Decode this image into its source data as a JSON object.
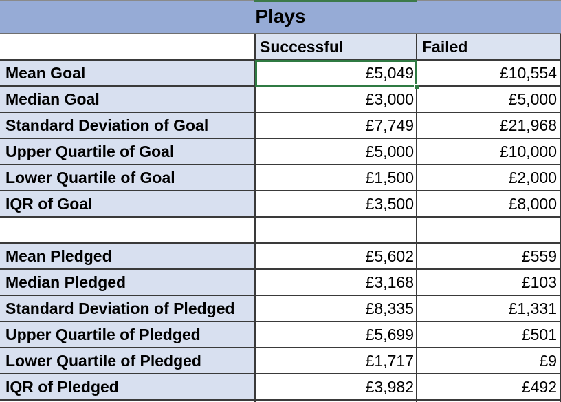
{
  "sheet": {
    "title": "Plays",
    "columns": [
      "Successful",
      "Failed"
    ],
    "selected_cell": "Mean Goal / Successful",
    "rows": [
      {
        "label": "Mean Goal",
        "successful": "£5,049",
        "failed": "£10,554"
      },
      {
        "label": "Median Goal",
        "successful": "£3,000",
        "failed": "£5,000"
      },
      {
        "label": "Standard Deviation of Goal",
        "successful": "£7,749",
        "failed": "£21,968"
      },
      {
        "label": "Upper Quartile of Goal",
        "successful": "£5,000",
        "failed": "£10,000"
      },
      {
        "label": "Lower Quartile of Goal",
        "successful": "£1,500",
        "failed": "£2,000"
      },
      {
        "label": "IQR of Goal",
        "successful": "£3,500",
        "failed": "£8,000"
      },
      {
        "label": "",
        "successful": "",
        "failed": ""
      },
      {
        "label": "Mean Pledged",
        "successful": "£5,602",
        "failed": "£559"
      },
      {
        "label": "Median Pledged",
        "successful": "£3,168",
        "failed": "£103"
      },
      {
        "label": "Standard Deviation of Pledged",
        "successful": "£8,335",
        "failed": "£1,331"
      },
      {
        "label": "Upper Quartile of Pledged",
        "successful": "£5,699",
        "failed": "£501"
      },
      {
        "label": "Lower Quartile of Pledged",
        "successful": "£1,717",
        "failed": "£9"
      },
      {
        "label": "IQR of Pledged",
        "successful": "£3,982",
        "failed": "£492"
      }
    ]
  },
  "colors": {
    "title_fill": "#96abd6",
    "label_fill": "#d8e0f0",
    "header_fill": "#dbe3f1",
    "selection": "#2f7a43"
  }
}
